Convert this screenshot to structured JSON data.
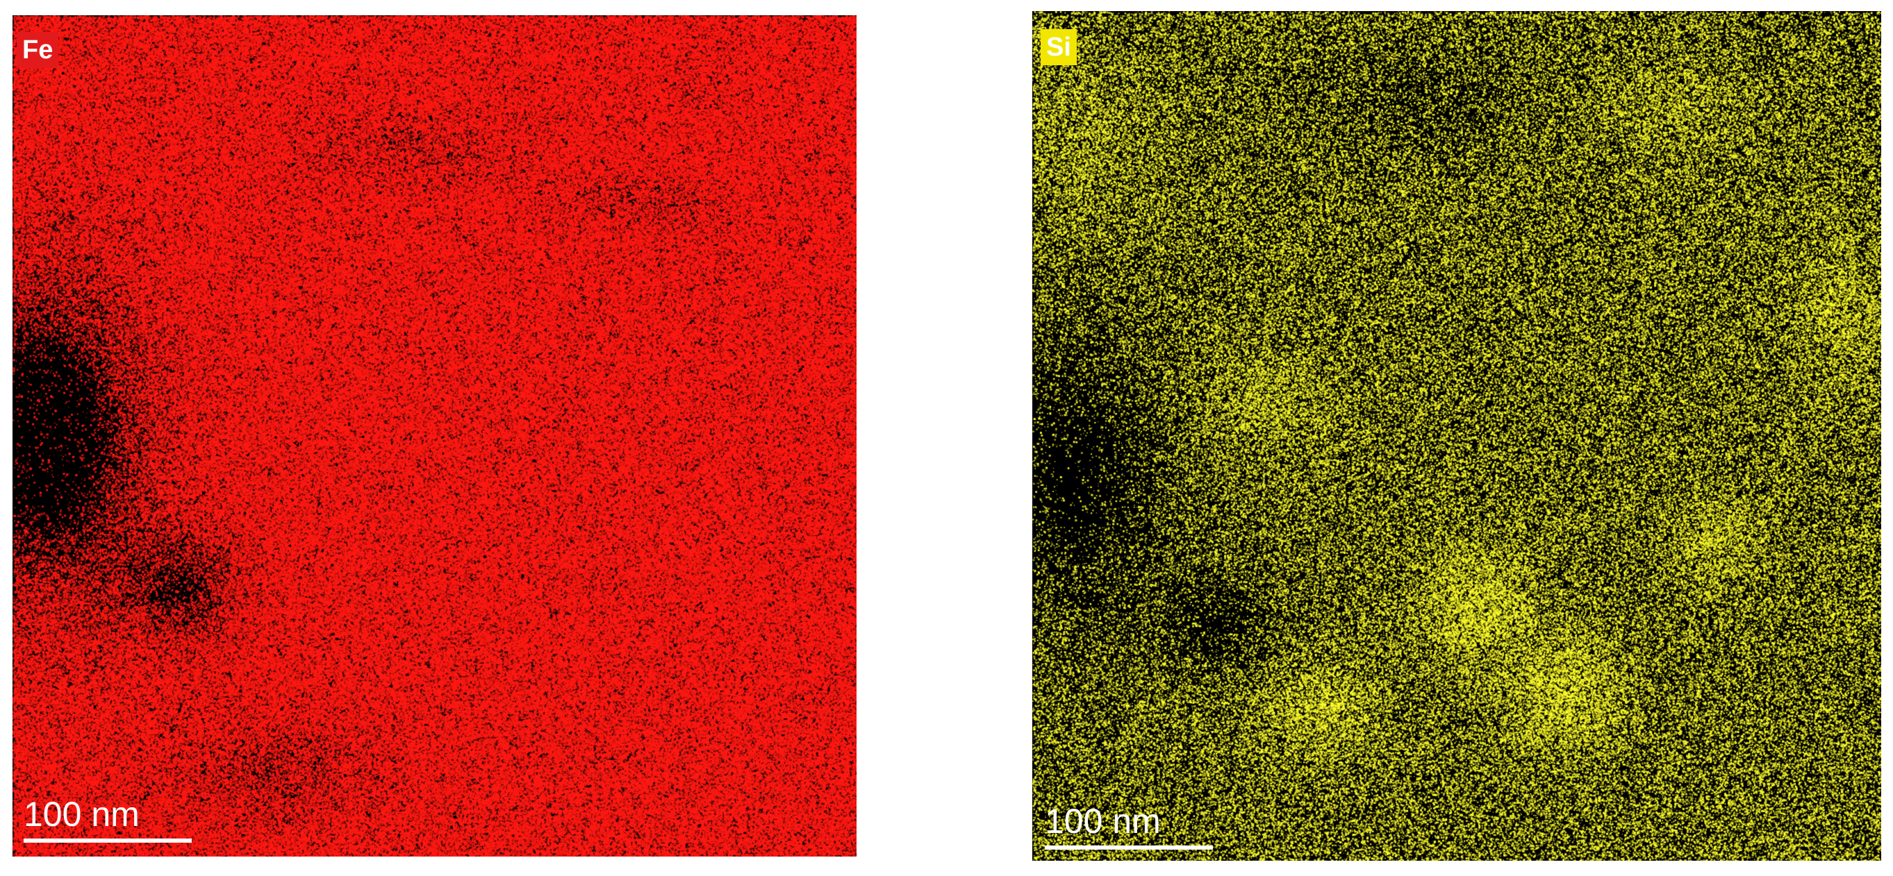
{
  "panels": [
    {
      "element": "Fe",
      "badge_color": "#e31a1c",
      "signal_color": "#ff1a14",
      "scale_bar_label": "100 nm"
    },
    {
      "element": "Si",
      "badge_color": "#f2e600",
      "signal_color": "#ffff2a",
      "scale_bar_label": "100 nm"
    }
  ]
}
